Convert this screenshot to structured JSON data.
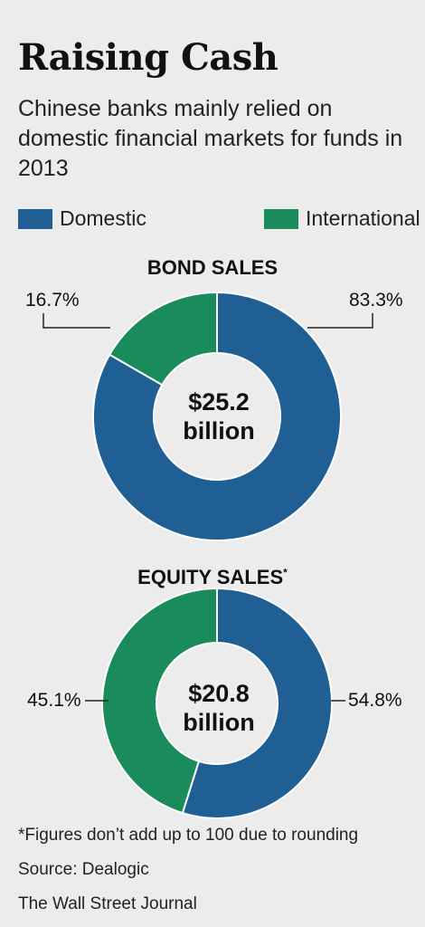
{
  "header": {
    "title": "Raising Cash",
    "subtitle": "Chinese banks mainly relied on domestic financial markets for funds in 2013"
  },
  "legend": [
    {
      "label": "Domestic",
      "color": "#1f5f94"
    },
    {
      "label": "International",
      "color": "#1a8c5c"
    }
  ],
  "chart_data": [
    {
      "type": "pie",
      "title": "BOND SALES",
      "center_value": "$25.2",
      "center_unit": "billion",
      "slices": [
        {
          "label": "Domestic",
          "value": 83.3,
          "display": "83.3%",
          "color": "#1f5f94"
        },
        {
          "label": "International",
          "value": 16.7,
          "display": "16.7%",
          "color": "#1a8c5c"
        }
      ]
    },
    {
      "type": "pie",
      "title": "EQUITY SALES",
      "title_marker": "*",
      "center_value": "$20.8",
      "center_unit": "billion",
      "slices": [
        {
          "label": "Domestic",
          "value": 54.8,
          "display": "54.8%",
          "color": "#1f5f94"
        },
        {
          "label": "International",
          "value": 45.1,
          "display": "45.1%",
          "color": "#1a8c5c"
        }
      ]
    }
  ],
  "footer": {
    "note": "*Figures don’t add up to 100 due to rounding",
    "source": "Source: Dealogic",
    "credit": "The Wall Street Journal"
  }
}
